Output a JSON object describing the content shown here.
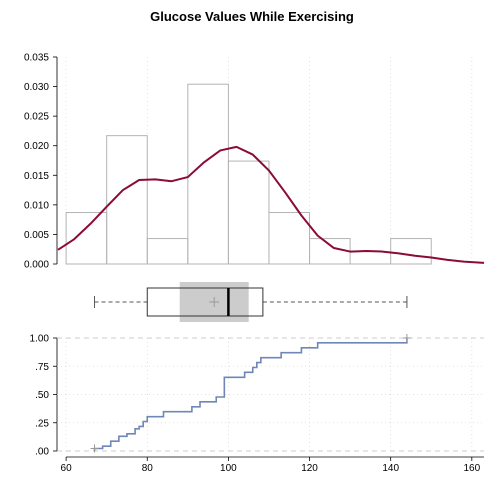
{
  "chart_data": {
    "title": "Glucose Values While Exercising",
    "xlim": [
      58,
      163
    ],
    "x_ticks": [
      "60",
      "80",
      "100",
      "120",
      "140",
      "160"
    ],
    "x_tick_values": [
      60,
      80,
      100,
      120,
      140,
      160
    ],
    "histogram": {
      "type": "bar",
      "ylim": [
        0,
        0.035
      ],
      "y_ticks": [
        "0.000",
        "0.005",
        "0.010",
        "0.015",
        "0.020",
        "0.025",
        "0.030",
        "0.035"
      ],
      "y_tick_values": [
        0,
        0.005,
        0.01,
        0.015,
        0.02,
        0.025,
        0.03,
        0.035
      ],
      "bins": [
        {
          "from": 60,
          "to": 70,
          "density": 0.0087
        },
        {
          "from": 70,
          "to": 80,
          "density": 0.0217
        },
        {
          "from": 80,
          "to": 90,
          "density": 0.0043
        },
        {
          "from": 90,
          "to": 100,
          "density": 0.0304
        },
        {
          "from": 100,
          "to": 110,
          "density": 0.0174
        },
        {
          "from": 110,
          "to": 120,
          "density": 0.0087
        },
        {
          "from": 120,
          "to": 130,
          "density": 0.0043
        },
        {
          "from": 130,
          "to": 140,
          "density": 0.0
        },
        {
          "from": 140,
          "to": 150,
          "density": 0.0043
        }
      ],
      "bar_color": "#b3b3b3"
    },
    "density_curve": {
      "type": "line",
      "color": "#8b0a3a",
      "x": [
        58,
        62,
        66,
        70,
        74,
        78,
        82,
        86,
        90,
        94,
        98,
        102,
        106,
        110,
        114,
        118,
        122,
        126,
        130,
        134,
        138,
        142,
        146,
        150,
        154,
        158,
        163
      ],
      "y": [
        0.0024,
        0.0042,
        0.0068,
        0.0097,
        0.0125,
        0.0142,
        0.0143,
        0.014,
        0.0147,
        0.0172,
        0.0192,
        0.0198,
        0.0185,
        0.0158,
        0.0121,
        0.0082,
        0.0048,
        0.0027,
        0.0021,
        0.0022,
        0.0021,
        0.0018,
        0.0014,
        0.0011,
        0.0007,
        0.0004,
        0.0002
      ]
    },
    "boxplot": {
      "type": "box",
      "min": 67,
      "q1": 80,
      "median": 100,
      "q3": 108.5,
      "max": 144,
      "mean": 96.5,
      "notch_low": 88,
      "notch_high": 105,
      "notch_color": "#cccccc"
    },
    "ecdf": {
      "type": "step",
      "color": "#6f86b8",
      "ylim": [
        0,
        1
      ],
      "y_ticks": [
        ".00",
        ".25",
        ".50",
        ".75",
        "1.00"
      ],
      "y_tick_values": [
        0,
        0.25,
        0.5,
        0.75,
        1.0
      ],
      "x": [
        67,
        69,
        71,
        73,
        75,
        77,
        78,
        79,
        80,
        84,
        87,
        91,
        93,
        97,
        99,
        100,
        104,
        106,
        107,
        108,
        113,
        118,
        122,
        144
      ],
      "y": [
        0.022,
        0.043,
        0.087,
        0.13,
        0.152,
        0.196,
        0.217,
        0.261,
        0.304,
        0.348,
        0.348,
        0.391,
        0.435,
        0.478,
        0.652,
        0.652,
        0.696,
        0.739,
        0.783,
        0.826,
        0.87,
        0.913,
        0.957,
        1.0
      ]
    }
  }
}
